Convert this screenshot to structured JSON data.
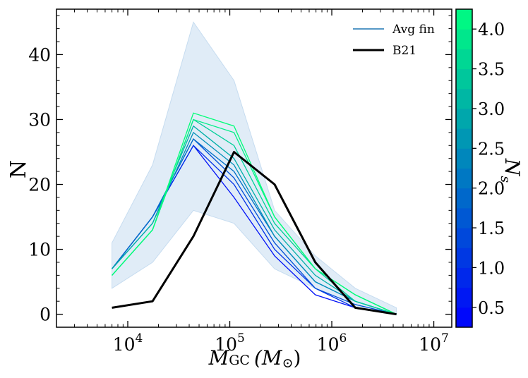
{
  "chart_data": {
    "type": "line",
    "xscale": "log",
    "x": [
      7000,
      17500,
      44000,
      110000,
      275000,
      690000,
      1700000,
      4300000
    ],
    "xlim": [
      2000,
      15000000
    ],
    "ylim": [
      -2,
      47
    ],
    "xlabel_main": "M",
    "xlabel_sub": "GC",
    "xlabel_paren": "(M",
    "xlabel_sun": "⊙",
    "xlabel_close": ")",
    "ylabel": "N",
    "x_ticks": [
      {
        "value": 10000,
        "base": "10",
        "exp": "4"
      },
      {
        "value": 100000,
        "base": "10",
        "exp": "5"
      },
      {
        "value": 1000000,
        "base": "10",
        "exp": "6"
      },
      {
        "value": 10000000,
        "base": "10",
        "exp": "7"
      }
    ],
    "y_ticks": [
      {
        "value": 0,
        "label": "0"
      },
      {
        "value": 10,
        "label": "10"
      },
      {
        "value": 20,
        "label": "20"
      },
      {
        "value": 30,
        "label": "30"
      },
      {
        "value": 40,
        "label": "40"
      }
    ],
    "band": {
      "upper": [
        11,
        23,
        45,
        36,
        16,
        9,
        4,
        1
      ],
      "lower": [
        4,
        8,
        16,
        14,
        7,
        4,
        1,
        0
      ],
      "color": "#c6dcf0"
    },
    "series": [
      {
        "name": "Ns 0.5",
        "ns": 0.5,
        "values": [
          7,
          15,
          26,
          18,
          9,
          3,
          1,
          0
        ]
      },
      {
        "name": "Ns 1.0",
        "ns": 1.0,
        "values": [
          7,
          15,
          26,
          20,
          10,
          4,
          1,
          0
        ]
      },
      {
        "name": "Ns 1.5",
        "ns": 1.5,
        "values": [
          7,
          15,
          27,
          21,
          11,
          4,
          1.5,
          0
        ]
      },
      {
        "name": "Ns 2.0",
        "ns": 2.0,
        "values": [
          7,
          15,
          27,
          22,
          12,
          5,
          2,
          0
        ]
      },
      {
        "name": "Ns 2.5",
        "ns": 2.5,
        "values": [
          7,
          14,
          28,
          23,
          12,
          5,
          2,
          0
        ]
      },
      {
        "name": "Ns 3.0",
        "ns": 3.0,
        "values": [
          7,
          14,
          29,
          24,
          13,
          6,
          2,
          0
        ]
      },
      {
        "name": "Ns 3.5",
        "ns": 3.5,
        "values": [
          6,
          13,
          30,
          26,
          14,
          7,
          2,
          0
        ]
      },
      {
        "name": "Ns 4.0",
        "ns": 4.0,
        "values": [
          6,
          13,
          30,
          28,
          15,
          7,
          3,
          0
        ]
      },
      {
        "name": "Ns 4.5",
        "ns": 4.5,
        "values": [
          6,
          13,
          31,
          29,
          15,
          7,
          3,
          0
        ]
      }
    ],
    "b21": {
      "name": "B21",
      "values": [
        1,
        2,
        12,
        25,
        20,
        8,
        1,
        0
      ],
      "color": "#000000"
    },
    "legend": {
      "position": "top-right",
      "entries": [
        {
          "label": "Avg fin",
          "color": "#1f77b4"
        },
        {
          "label": "B21",
          "color": "#000000"
        }
      ]
    },
    "colorbar": {
      "label_main": "N",
      "label_sub": "s",
      "range": [
        0.25,
        4.25
      ],
      "ticks": [
        "0.5",
        "1.0",
        "1.5",
        "2.0",
        "2.5",
        "3.0",
        "3.5",
        "4.0"
      ],
      "tick_values": [
        0.5,
        1.0,
        1.5,
        2.0,
        2.5,
        3.0,
        3.5,
        4.0
      ],
      "levels": 16,
      "color_low": "#0000ff",
      "color_high": "#00ff80"
    }
  }
}
